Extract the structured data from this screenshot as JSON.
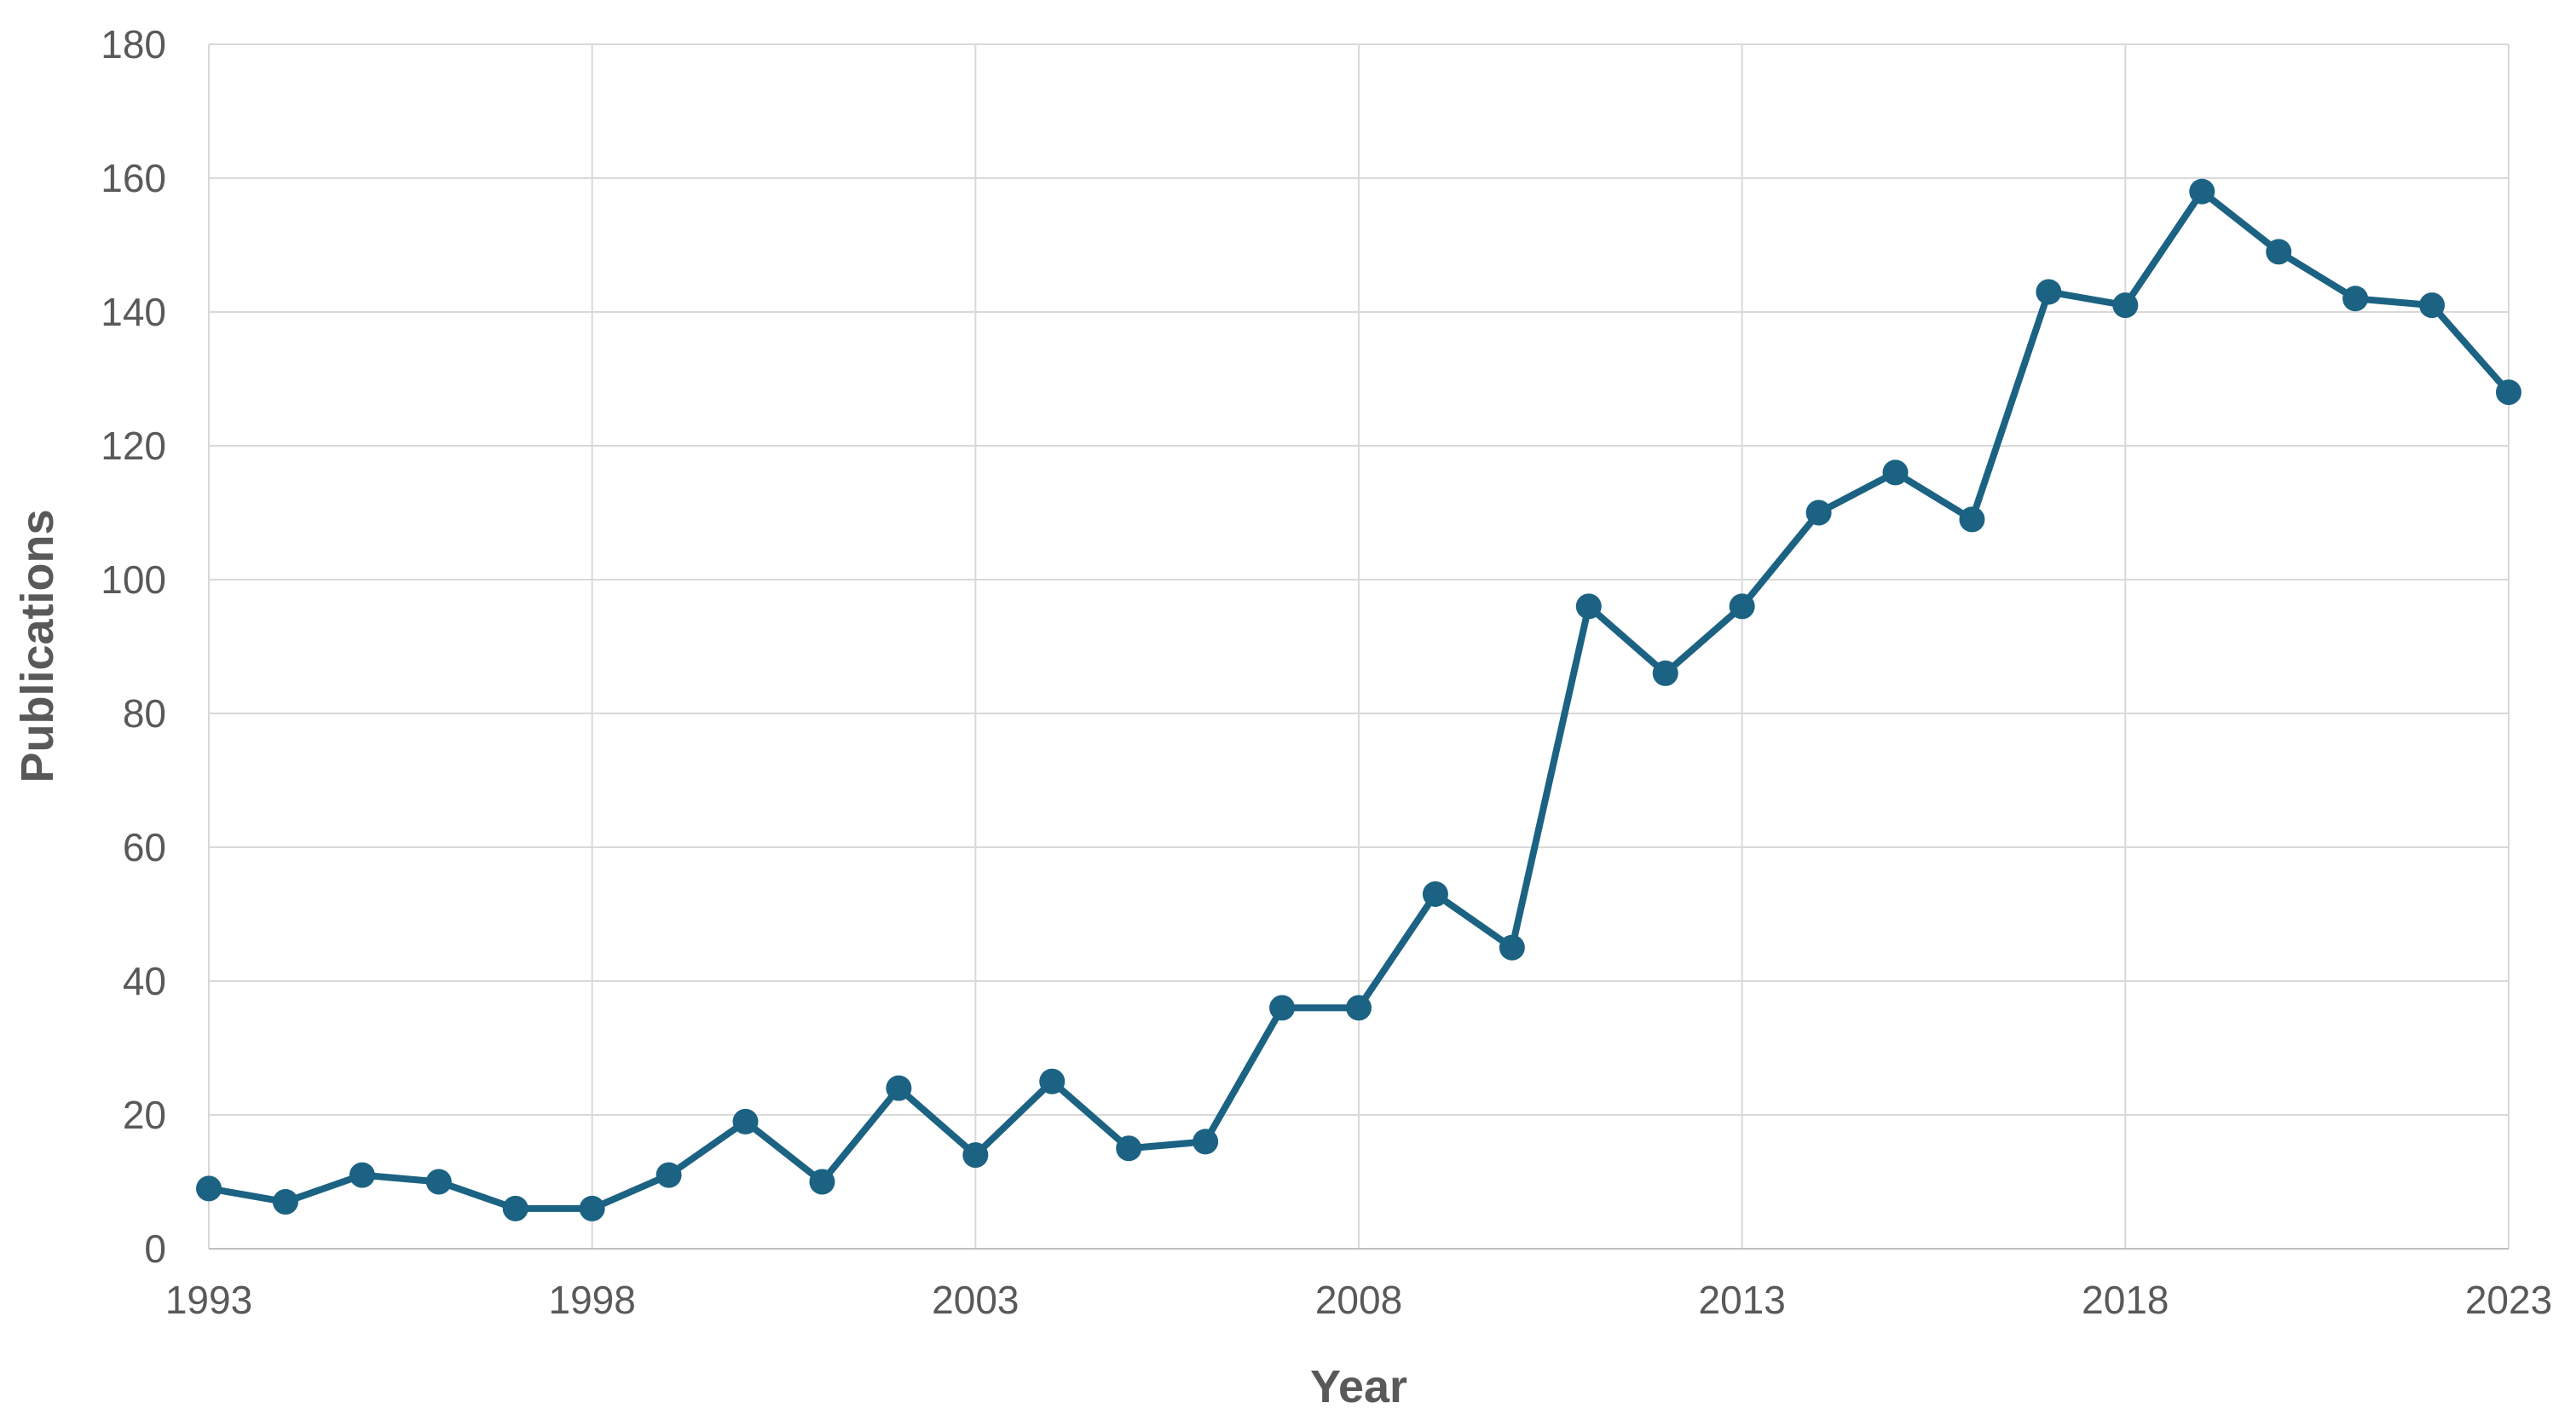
{
  "chart_data": {
    "type": "line",
    "x_label": "Year",
    "y_label": "Publications",
    "x": [
      1993,
      1994,
      1995,
      1996,
      1997,
      1998,
      1999,
      2000,
      2001,
      2002,
      2003,
      2004,
      2005,
      2006,
      2007,
      2008,
      2009,
      2010,
      2011,
      2012,
      2013,
      2014,
      2015,
      2016,
      2017,
      2018,
      2019,
      2020,
      2021,
      2022,
      2023
    ],
    "series": [
      {
        "color": "#1b6283",
        "values": [
          9,
          7,
          11,
          10,
          6,
          6,
          11,
          19,
          10,
          24,
          14,
          25,
          15,
          16,
          36,
          36,
          53,
          45,
          96,
          86,
          96,
          110,
          116,
          109,
          143,
          141,
          158,
          149,
          142,
          141,
          128
        ]
      }
    ],
    "xlim": [
      1993,
      2023
    ],
    "xticks": [
      1993,
      1998,
      2003,
      2008,
      2013,
      2018,
      2023
    ],
    "ylim": [
      0,
      180
    ],
    "yticks": [
      0,
      20,
      40,
      60,
      80,
      100,
      120,
      140,
      160,
      180
    ],
    "grid": true,
    "markers": true
  }
}
